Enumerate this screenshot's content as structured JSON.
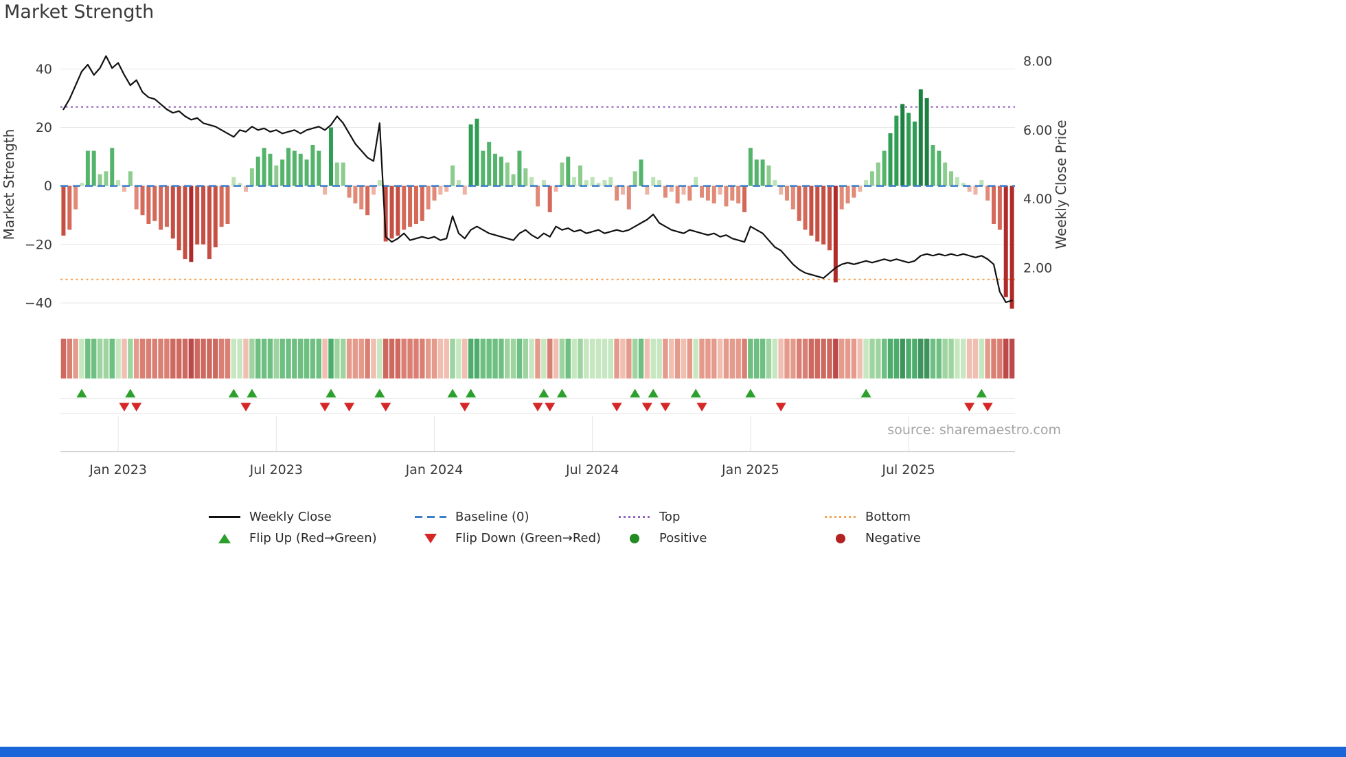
{
  "page": {
    "title": "Market Strength",
    "source": "source: sharemaestro.com"
  },
  "chart_data": {
    "type": "bar",
    "title": "Market Strength",
    "x_unit": "week-index",
    "n_weeks": 157,
    "x_ticks": [
      {
        "week": 9,
        "label": "Jan 2023"
      },
      {
        "week": 35,
        "label": "Jul 2023"
      },
      {
        "week": 61,
        "label": "Jan 2024"
      },
      {
        "week": 87,
        "label": "Jul 2024"
      },
      {
        "week": 113,
        "label": "Jan 2025"
      },
      {
        "week": 139,
        "label": "Jul 2025"
      }
    ],
    "left_axis": {
      "label": "Market Strength",
      "ticks": [
        40,
        20,
        0,
        -20,
        -40
      ],
      "tick_labels": [
        "40",
        "20",
        "0",
        "−20",
        "−40"
      ],
      "ylim": [
        -48,
        49
      ]
    },
    "right_axis": {
      "label": "Weekly Close Price",
      "ticks": [
        8,
        6,
        4,
        2
      ],
      "tick_labels": [
        "8.00",
        "6.00",
        "4.00",
        "2.00"
      ],
      "ylim": [
        0.3,
        8.54
      ]
    },
    "reference_lines": {
      "baseline": 0,
      "top": 27,
      "bottom": -32
    },
    "series": [
      {
        "name": "Market Strength",
        "type": "bar",
        "axis": "left",
        "values": [
          -17,
          -15,
          -8,
          1,
          12,
          12,
          4,
          5,
          13,
          2,
          -2,
          5,
          -8,
          -10,
          -13,
          -12,
          -15,
          -14,
          -18,
          -22,
          -25,
          -26,
          -20,
          -20,
          -25,
          -21,
          -14,
          -13,
          3,
          1,
          -2,
          6,
          10,
          13,
          11,
          7,
          9,
          13,
          12,
          11,
          9,
          14,
          12,
          -3,
          20,
          8,
          8,
          -4,
          -6,
          -8,
          -10,
          -3,
          2,
          -19,
          -18,
          -17,
          -15,
          -14,
          -13,
          -12,
          -8,
          -5,
          -3,
          -2,
          7,
          2,
          -3,
          21,
          23,
          12,
          15,
          11,
          10,
          8,
          4,
          12,
          6,
          3,
          -7,
          2,
          -9,
          -2,
          8,
          10,
          3,
          7,
          2,
          3,
          1,
          2,
          3,
          -5,
          -3,
          -8,
          5,
          9,
          -3,
          3,
          2,
          -4,
          -2,
          -6,
          -3,
          -5,
          3,
          -4,
          -5,
          -6,
          -3,
          -7,
          -5,
          -6,
          -9,
          13,
          9,
          9,
          7,
          2,
          -3,
          -5,
          -8,
          -12,
          -15,
          -17,
          -19,
          -20,
          -22,
          -33,
          -8,
          -6,
          -4,
          -2,
          2,
          5,
          8,
          12,
          18,
          24,
          28,
          25,
          22,
          33,
          30,
          14,
          12,
          8,
          5,
          3,
          1,
          -2,
          -3,
          2,
          -5,
          -13,
          -15,
          -38,
          -42
        ]
      },
      {
        "name": "Weekly Close",
        "type": "line",
        "axis": "right",
        "values": [
          6.6,
          6.9,
          7.3,
          7.7,
          7.9,
          7.6,
          7.8,
          8.15,
          7.8,
          7.95,
          7.6,
          7.3,
          7.45,
          7.1,
          6.95,
          6.9,
          6.75,
          6.6,
          6.5,
          6.55,
          6.4,
          6.3,
          6.35,
          6.2,
          6.15,
          6.1,
          6.0,
          5.9,
          5.8,
          6.0,
          5.95,
          6.1,
          6.0,
          6.05,
          5.95,
          6.0,
          5.9,
          5.95,
          6.0,
          5.9,
          6.0,
          6.05,
          6.1,
          6.0,
          6.15,
          6.4,
          6.2,
          5.9,
          5.6,
          5.4,
          5.2,
          5.1,
          6.2,
          2.9,
          2.75,
          2.85,
          3.0,
          2.8,
          2.85,
          2.9,
          2.85,
          2.9,
          2.8,
          2.85,
          3.5,
          3.0,
          2.85,
          3.1,
          3.2,
          3.1,
          3.0,
          2.95,
          2.9,
          2.85,
          2.8,
          3.0,
          3.1,
          2.95,
          2.85,
          3.0,
          2.9,
          3.2,
          3.1,
          3.15,
          3.05,
          3.1,
          3.0,
          3.05,
          3.1,
          3.0,
          3.05,
          3.1,
          3.05,
          3.1,
          3.2,
          3.3,
          3.4,
          3.55,
          3.3,
          3.2,
          3.1,
          3.05,
          3.0,
          3.1,
          3.05,
          3.0,
          2.95,
          3.0,
          2.9,
          2.95,
          2.85,
          2.8,
          2.75,
          3.2,
          3.1,
          3.0,
          2.8,
          2.6,
          2.5,
          2.3,
          2.1,
          1.95,
          1.85,
          1.8,
          1.75,
          1.7,
          1.85,
          2.0,
          2.1,
          2.15,
          2.1,
          2.15,
          2.2,
          2.15,
          2.2,
          2.25,
          2.2,
          2.25,
          2.2,
          2.15,
          2.2,
          2.35,
          2.4,
          2.35,
          2.4,
          2.35,
          2.4,
          2.35,
          2.4,
          2.35,
          2.3,
          2.35,
          2.25,
          2.1,
          1.3,
          1.0,
          1.05
        ]
      }
    ],
    "flip_up_weeks": [
      3,
      11,
      28,
      31,
      44,
      52,
      64,
      67,
      79,
      82,
      94,
      97,
      104,
      113,
      132,
      151
    ],
    "flip_down_weeks": [
      10,
      12,
      30,
      43,
      47,
      53,
      66,
      78,
      80,
      91,
      96,
      99,
      105,
      118,
      149,
      152
    ],
    "heatmap": {
      "description": "weekly red/green intensity strip derived from Market Strength sign and magnitude"
    }
  },
  "legend": {
    "items": [
      {
        "label": "Weekly Close"
      },
      {
        "label": "Baseline (0)"
      },
      {
        "label": "Top"
      },
      {
        "label": "Bottom"
      },
      {
        "label": "Flip Up (Red→Green)"
      },
      {
        "label": "Flip Down (Green→Red)"
      },
      {
        "label": "Positive"
      },
      {
        "label": "Negative"
      }
    ]
  },
  "colors": {
    "line": "#111111",
    "baseline": "#3d7ec9",
    "top": "#9467bd",
    "bottom": "#f9a458",
    "flip_up": "#2ca02c",
    "flip_down": "#d62728",
    "positive_dot": "#228b22",
    "negative_dot": "#b22222",
    "pos_ramp": [
      [
        26,
        "#1d8040"
      ],
      [
        16,
        "#2f9e54"
      ],
      [
        9,
        "#55b46b"
      ],
      [
        4,
        "#8ccc8e"
      ],
      [
        0,
        "#bce3b5"
      ]
    ],
    "neg_ramp": [
      [
        26,
        "#b02a2a"
      ],
      [
        16,
        "#c64f44"
      ],
      [
        9,
        "#d4695a"
      ],
      [
        4,
        "#e08a77"
      ],
      [
        0,
        "#eeb3a4"
      ]
    ],
    "grid": "#e7e7e7",
    "axis_line": "#c9c9c9",
    "text": "#3a3a3a",
    "muted_text": "#a3a3a3",
    "footer": "#1a66d8"
  }
}
